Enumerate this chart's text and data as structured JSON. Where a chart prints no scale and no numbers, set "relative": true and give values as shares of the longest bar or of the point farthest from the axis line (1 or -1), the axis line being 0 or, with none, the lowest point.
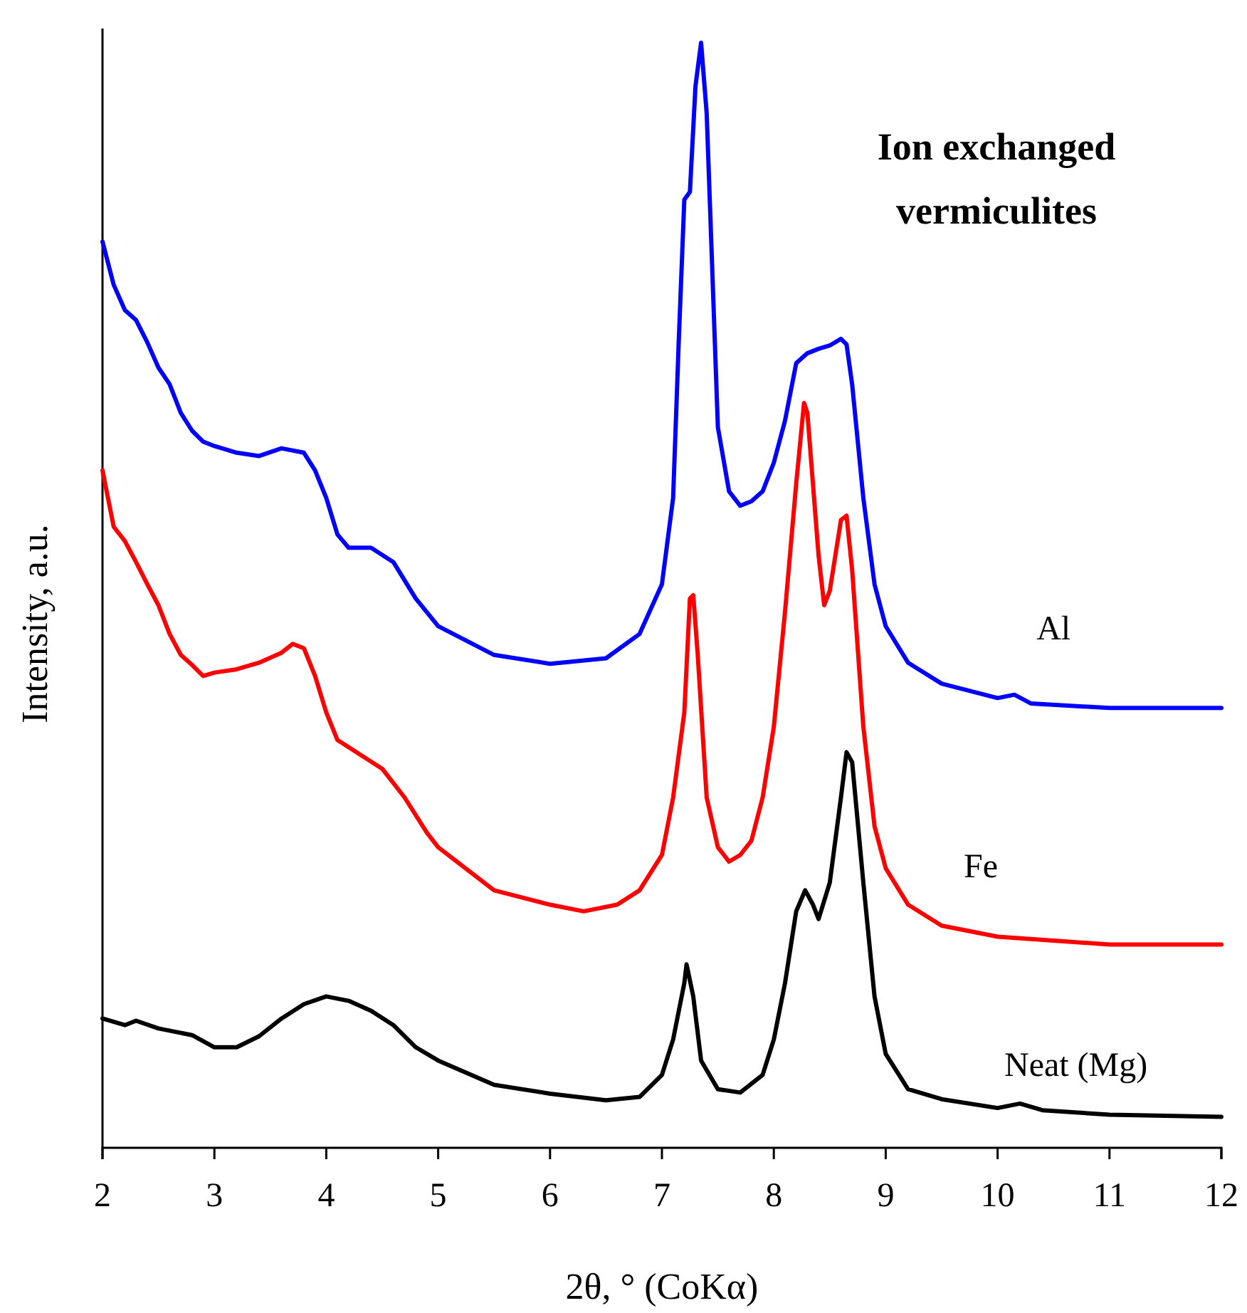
{
  "chart_data": {
    "type": "line",
    "title": "Ion exchanged vermiculites",
    "xlabel": "2θ, ° (CoKα)",
    "ylabel": "Intensity, a.u.",
    "relative": true,
    "xlim": [
      2,
      12
    ],
    "xticks": [
      2,
      3,
      4,
      5,
      6,
      7,
      8,
      9,
      10,
      11,
      12
    ],
    "grid": false,
    "marker": "none",
    "line_style": "solid",
    "series": [
      {
        "name": "Al",
        "color": "#0000ff",
        "x": [
          2.0,
          2.1,
          2.2,
          2.3,
          2.4,
          2.5,
          2.6,
          2.7,
          2.8,
          2.9,
          3.0,
          3.2,
          3.4,
          3.6,
          3.8,
          3.9,
          4.0,
          4.1,
          4.2,
          4.4,
          4.6,
          4.8,
          5.0,
          5.5,
          6.0,
          6.5,
          6.8,
          7.0,
          7.1,
          7.15,
          7.2,
          7.25,
          7.3,
          7.35,
          7.4,
          7.5,
          7.6,
          7.7,
          7.8,
          7.9,
          8.0,
          8.1,
          8.2,
          8.3,
          8.4,
          8.5,
          8.6,
          8.65,
          8.7,
          8.8,
          8.9,
          9.0,
          9.2,
          9.5,
          10.0,
          10.15,
          10.3,
          11,
          12
        ],
        "values": [
          0.82,
          0.781,
          0.758,
          0.749,
          0.729,
          0.706,
          0.691,
          0.665,
          0.649,
          0.639,
          0.635,
          0.629,
          0.626,
          0.633,
          0.629,
          0.613,
          0.588,
          0.555,
          0.543,
          0.543,
          0.53,
          0.497,
          0.472,
          0.446,
          0.438,
          0.443,
          0.465,
          0.51,
          0.588,
          0.729,
          0.858,
          0.865,
          0.961,
          1,
          0.936,
          0.652,
          0.594,
          0.581,
          0.585,
          0.594,
          0.62,
          0.658,
          0.71,
          0.719,
          0.723,
          0.726,
          0.732,
          0.727,
          0.691,
          0.588,
          0.51,
          0.472,
          0.439,
          0.42,
          0.407,
          0.41,
          0.402,
          0.398,
          0.398
        ]
      },
      {
        "name": "Fe",
        "color": "#ff0000",
        "x": [
          2.0,
          2.1,
          2.2,
          2.3,
          2.4,
          2.5,
          2.6,
          2.7,
          2.8,
          2.9,
          3.0,
          3.2,
          3.4,
          3.6,
          3.7,
          3.8,
          3.9,
          4.0,
          4.1,
          4.3,
          4.5,
          4.7,
          4.9,
          5.0,
          5.5,
          6.0,
          6.3,
          6.6,
          6.8,
          7.0,
          7.1,
          7.2,
          7.25,
          7.28,
          7.32,
          7.4,
          7.5,
          7.6,
          7.7,
          7.8,
          7.9,
          8.0,
          8.1,
          8.2,
          8.27,
          8.3,
          8.4,
          8.45,
          8.5,
          8.55,
          8.6,
          8.65,
          8.7,
          8.8,
          8.9,
          9.0,
          9.2,
          9.5,
          10.0,
          11,
          12
        ],
        "values": [
          0.613,
          0.562,
          0.549,
          0.53,
          0.51,
          0.491,
          0.465,
          0.446,
          0.437,
          0.427,
          0.43,
          0.433,
          0.439,
          0.448,
          0.456,
          0.452,
          0.427,
          0.394,
          0.369,
          0.356,
          0.343,
          0.317,
          0.285,
          0.272,
          0.233,
          0.22,
          0.214,
          0.22,
          0.233,
          0.265,
          0.317,
          0.394,
          0.497,
          0.5,
          0.446,
          0.317,
          0.272,
          0.259,
          0.265,
          0.278,
          0.317,
          0.381,
          0.485,
          0.601,
          0.674,
          0.665,
          0.536,
          0.491,
          0.504,
          0.536,
          0.568,
          0.572,
          0.523,
          0.381,
          0.291,
          0.253,
          0.22,
          0.201,
          0.191,
          0.184,
          0.184
        ]
      },
      {
        "name": "Neat (Mg)",
        "color": "#000000",
        "x": [
          2.0,
          2.2,
          2.3,
          2.5,
          2.8,
          3.0,
          3.2,
          3.4,
          3.6,
          3.8,
          4.0,
          4.2,
          4.4,
          4.6,
          4.8,
          5.0,
          5.5,
          6.0,
          6.5,
          6.8,
          7.0,
          7.1,
          7.2,
          7.22,
          7.28,
          7.35,
          7.5,
          7.7,
          7.9,
          8.0,
          8.1,
          8.2,
          8.28,
          8.35,
          8.4,
          8.5,
          8.6,
          8.65,
          8.7,
          8.8,
          8.9,
          9.0,
          9.2,
          9.5,
          10.0,
          10.2,
          10.4,
          11,
          12
        ],
        "values": [
          0.117,
          0.111,
          0.115,
          0.108,
          0.102,
          0.091,
          0.091,
          0.101,
          0.117,
          0.13,
          0.137,
          0.133,
          0.124,
          0.111,
          0.091,
          0.079,
          0.057,
          0.049,
          0.043,
          0.046,
          0.066,
          0.098,
          0.149,
          0.166,
          0.137,
          0.079,
          0.053,
          0.05,
          0.066,
          0.098,
          0.149,
          0.214,
          0.233,
          0.22,
          0.207,
          0.24,
          0.317,
          0.358,
          0.349,
          0.24,
          0.137,
          0.085,
          0.053,
          0.044,
          0.036,
          0.04,
          0.034,
          0.03,
          0.028
        ]
      }
    ]
  }
}
